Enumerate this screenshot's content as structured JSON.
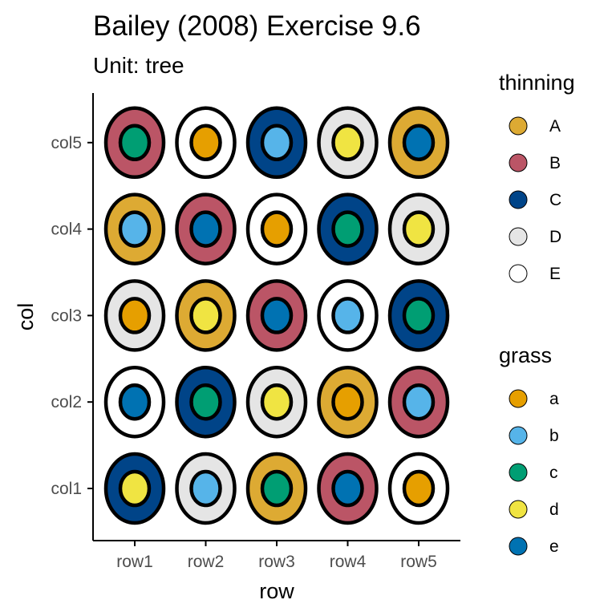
{
  "chart_data": {
    "type": "scatter",
    "title": "Bailey (2008) Exercise 9.6",
    "subtitle": "Unit: tree",
    "xlabel": "row",
    "ylabel": "col",
    "x_categories": [
      "row1",
      "row2",
      "row3",
      "row4",
      "row5"
    ],
    "y_categories": [
      "col1",
      "col2",
      "col3",
      "col4",
      "col5"
    ],
    "points": [
      {
        "row": "row1",
        "col": "col5",
        "thinning": "B",
        "grass": "c"
      },
      {
        "row": "row2",
        "col": "col5",
        "thinning": "E",
        "grass": "a"
      },
      {
        "row": "row3",
        "col": "col5",
        "thinning": "C",
        "grass": "b"
      },
      {
        "row": "row4",
        "col": "col5",
        "thinning": "D",
        "grass": "d"
      },
      {
        "row": "row5",
        "col": "col5",
        "thinning": "A",
        "grass": "e"
      },
      {
        "row": "row1",
        "col": "col4",
        "thinning": "A",
        "grass": "b"
      },
      {
        "row": "row2",
        "col": "col4",
        "thinning": "B",
        "grass": "e"
      },
      {
        "row": "row3",
        "col": "col4",
        "thinning": "E",
        "grass": "a"
      },
      {
        "row": "row4",
        "col": "col4",
        "thinning": "C",
        "grass": "c"
      },
      {
        "row": "row5",
        "col": "col4",
        "thinning": "D",
        "grass": "d"
      },
      {
        "row": "row1",
        "col": "col3",
        "thinning": "D",
        "grass": "a"
      },
      {
        "row": "row2",
        "col": "col3",
        "thinning": "A",
        "grass": "d"
      },
      {
        "row": "row3",
        "col": "col3",
        "thinning": "B",
        "grass": "e"
      },
      {
        "row": "row4",
        "col": "col3",
        "thinning": "E",
        "grass": "b"
      },
      {
        "row": "row5",
        "col": "col3",
        "thinning": "C",
        "grass": "c"
      },
      {
        "row": "row1",
        "col": "col2",
        "thinning": "E",
        "grass": "e"
      },
      {
        "row": "row2",
        "col": "col2",
        "thinning": "C",
        "grass": "c"
      },
      {
        "row": "row3",
        "col": "col2",
        "thinning": "D",
        "grass": "d"
      },
      {
        "row": "row4",
        "col": "col2",
        "thinning": "A",
        "grass": "a"
      },
      {
        "row": "row5",
        "col": "col2",
        "thinning": "B",
        "grass": "b"
      },
      {
        "row": "row1",
        "col": "col1",
        "thinning": "C",
        "grass": "d"
      },
      {
        "row": "row2",
        "col": "col1",
        "thinning": "D",
        "grass": "b"
      },
      {
        "row": "row3",
        "col": "col1",
        "thinning": "A",
        "grass": "c"
      },
      {
        "row": "row4",
        "col": "col1",
        "thinning": "B",
        "grass": "e"
      },
      {
        "row": "row5",
        "col": "col1",
        "thinning": "E",
        "grass": "a"
      }
    ],
    "legends": [
      {
        "title": "thinning",
        "placement": "right",
        "items": [
          {
            "label": "A",
            "color": "#DDAA33"
          },
          {
            "label": "B",
            "color": "#BB5566"
          },
          {
            "label": "C",
            "color": "#004488"
          },
          {
            "label": "D",
            "color": "#E5E5E5"
          },
          {
            "label": "E",
            "color": "#FFFFFF"
          }
        ]
      },
      {
        "title": "grass",
        "placement": "right",
        "items": [
          {
            "label": "a",
            "color": "#E69F00"
          },
          {
            "label": "b",
            "color": "#56B4E9"
          },
          {
            "label": "c",
            "color": "#009E73"
          },
          {
            "label": "d",
            "color": "#F0E442"
          },
          {
            "label": "e",
            "color": "#0072B2"
          }
        ]
      }
    ],
    "grid": false
  }
}
